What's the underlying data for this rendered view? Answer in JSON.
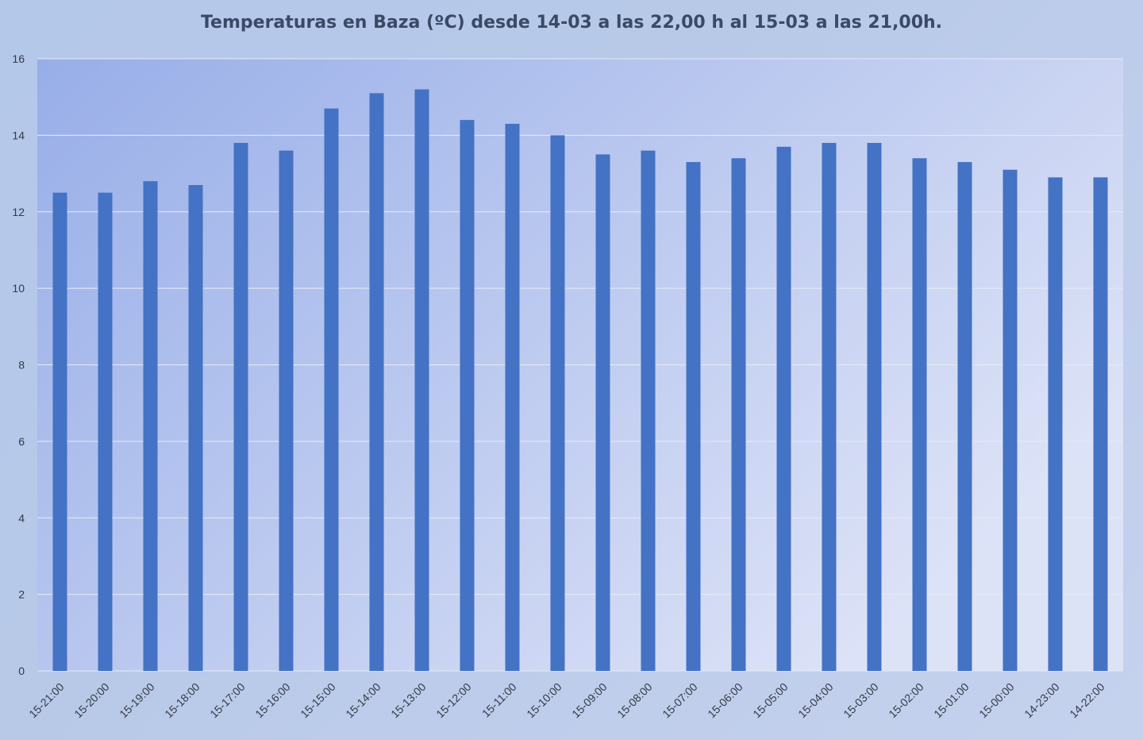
{
  "chart_data": {
    "type": "bar",
    "title": "Temperaturas en Baza (ºC) desde 14-03 a las 22,00 h al 15-03 a las 21,00h.",
    "xlabel": "",
    "ylabel": "",
    "ylim": [
      0,
      16
    ],
    "yticks": [
      0,
      2,
      4,
      6,
      8,
      10,
      12,
      14,
      16
    ],
    "grid": true,
    "legend": "none",
    "categories": [
      "15-21:00",
      "15-20:00",
      "15-19:00",
      "15-18:00",
      "15-17:00",
      "15-16:00",
      "15-15:00",
      "15-14:00",
      "15-13:00",
      "15-12:00",
      "15-11:00",
      "15-10:00",
      "15-09:00",
      "15-08:00",
      "15-07:00",
      "15-06:00",
      "15-05:00",
      "15-04:00",
      "15-03:00",
      "15-02:00",
      "15-01:00",
      "15-00:00",
      "14-23:00",
      "14-22:00"
    ],
    "values": [
      12.5,
      12.5,
      12.8,
      12.7,
      13.8,
      13.6,
      14.7,
      15.1,
      15.2,
      14.4,
      14.3,
      14.0,
      13.5,
      13.6,
      13.3,
      13.4,
      13.7,
      13.8,
      13.8,
      13.4,
      13.3,
      13.1,
      12.9,
      12.9
    ],
    "colors": {
      "bar": "#4472c4",
      "plot_bg_start": "#98aee8",
      "plot_bg_end": "#dde3f7",
      "grid": "#e6ebf7",
      "text": "#333a46",
      "title": "#3a4a66"
    }
  }
}
